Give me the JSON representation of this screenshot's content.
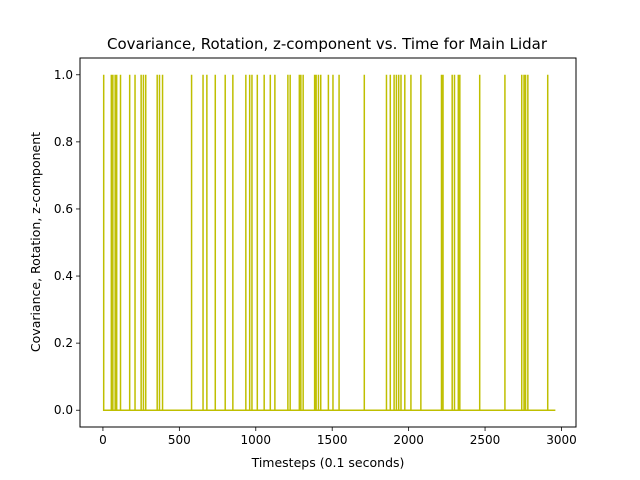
{
  "chart_data": {
    "type": "line",
    "title": "Covariance, Rotation, z-component vs. Time for Main Lidar",
    "xlabel": "Timesteps (0.1 seconds)",
    "ylabel": "Covariance, Rotation, z-component",
    "xlim": [
      -150,
      3095
    ],
    "ylim": [
      -0.05,
      1.05
    ],
    "x_ticks": [
      0,
      500,
      1000,
      1500,
      2000,
      2500,
      3000
    ],
    "y_ticks": [
      0.0,
      0.2,
      0.4,
      0.6,
      0.8,
      1.0
    ],
    "x_tick_labels": [
      "0",
      "500",
      "1000",
      "1500",
      "2000",
      "2500",
      "3000"
    ],
    "y_tick_labels": [
      "0.0",
      "0.2",
      "0.4",
      "0.6",
      "0.8",
      "1.0"
    ],
    "grid": false,
    "series": [
      {
        "color": "#bfbf00",
        "x_range": [
          0,
          2960
        ],
        "baseline": 0.0,
        "spike_value": 1.0,
        "spike_x": [
          5,
          55,
          65,
          80,
          90,
          115,
          175,
          210,
          250,
          265,
          280,
          355,
          370,
          390,
          580,
          655,
          680,
          735,
          800,
          850,
          935,
          960,
          975,
          1010,
          1055,
          1095,
          1125,
          1210,
          1225,
          1285,
          1295,
          1310,
          1385,
          1395,
          1410,
          1425,
          1475,
          1505,
          1545,
          1710,
          1855,
          1880,
          1905,
          1920,
          1935,
          1950,
          1975,
          2015,
          2080,
          2215,
          2225,
          2285,
          2300,
          2325,
          2335,
          2465,
          2630,
          2740,
          2755,
          2765,
          2780,
          2910
        ]
      }
    ]
  }
}
